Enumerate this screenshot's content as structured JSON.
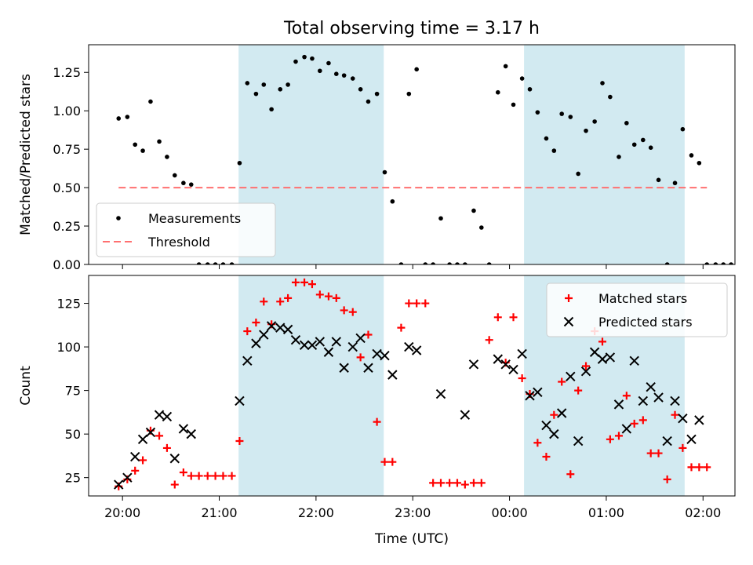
{
  "figure": {
    "title": "Total observing time = 3.17 h",
    "xlabel": "Time (UTC)",
    "x_ticks": [
      "20:00",
      "21:00",
      "22:00",
      "23:00",
      "00:00",
      "01:00",
      "02:00"
    ],
    "x_tick_hours": [
      20,
      21,
      22,
      23,
      24,
      25,
      26
    ],
    "xlim_hours": [
      19.65,
      26.33
    ],
    "shaded_intervals_hours": [
      [
        21.2,
        22.7
      ],
      [
        24.15,
        25.81
      ]
    ],
    "shade_color": "#add8e6"
  },
  "chart_data": [
    {
      "type": "scatter",
      "ylabel": "Matched/Predicted stars",
      "ylim": [
        0,
        1.43
      ],
      "y_ticks": [
        "0.00",
        "0.25",
        "0.50",
        "0.75",
        "1.00",
        "1.25"
      ],
      "y_tick_values": [
        0,
        0.25,
        0.5,
        0.75,
        1.0,
        1.25
      ],
      "legend_position": "lower-left",
      "series": [
        {
          "name": "Measurements",
          "marker": "dot",
          "color": "#000000",
          "x": [
            19.96,
            20.05,
            20.13,
            20.21,
            20.29,
            20.38,
            20.46,
            20.54,
            20.63,
            20.71,
            20.79,
            20.88,
            20.96,
            21.04,
            21.13,
            21.21,
            21.29,
            21.38,
            21.46,
            21.54,
            21.63,
            21.71,
            21.79,
            21.88,
            21.96,
            22.04,
            22.13,
            22.21,
            22.29,
            22.38,
            22.46,
            22.54,
            22.63,
            22.71,
            22.79,
            22.88,
            22.96,
            23.04,
            23.13,
            23.21,
            23.29,
            23.38,
            23.46,
            23.54,
            23.63,
            23.71,
            23.79,
            23.88,
            23.96,
            24.04,
            24.13,
            24.21,
            24.29,
            24.38,
            24.46,
            24.54,
            24.63,
            24.71,
            24.79,
            24.88,
            24.96,
            25.04,
            25.13,
            25.21,
            25.29,
            25.38,
            25.46,
            25.54,
            25.63,
            25.71,
            25.79,
            25.88,
            25.96,
            26.04,
            26.13,
            26.21,
            26.29
          ],
          "y": [
            0.95,
            0.96,
            0.78,
            0.74,
            1.06,
            0.8,
            0.7,
            0.58,
            0.53,
            0.52,
            0.0,
            0.0,
            0.0,
            0.0,
            0.0,
            0.66,
            1.18,
            1.11,
            1.17,
            1.01,
            1.14,
            1.17,
            1.32,
            1.35,
            1.34,
            1.26,
            1.31,
            1.24,
            1.23,
            1.21,
            1.14,
            1.06,
            1.11,
            0.6,
            0.41,
            0.0,
            1.11,
            1.27,
            0.0,
            0.0,
            0.3,
            0.0,
            0.0,
            0.0,
            0.35,
            0.24,
            0.0,
            1.12,
            1.29,
            1.04,
            1.21,
            1.14,
            0.99,
            0.82,
            0.74,
            0.98,
            0.96,
            0.59,
            0.87,
            0.93,
            1.18,
            1.09,
            0.7,
            0.92,
            0.78,
            0.81,
            0.76,
            0.55,
            0.0,
            0.53,
            0.88,
            0.71,
            0.66,
            0.0,
            0.0,
            0.0,
            0.0
          ]
        },
        {
          "name": "Threshold",
          "line_style": "dashed",
          "color": "#ff7070",
          "x": [
            19.96,
            26.04
          ],
          "y": [
            0.5,
            0.5
          ]
        }
      ]
    },
    {
      "type": "scatter",
      "ylabel": "Count",
      "ylim": [
        14.5,
        141
      ],
      "y_ticks": [
        "25",
        "50",
        "75",
        "100",
        "125"
      ],
      "y_tick_values": [
        25,
        50,
        75,
        100,
        125
      ],
      "legend_position": "upper-right",
      "series": [
        {
          "name": "Matched stars",
          "marker": "plus",
          "color": "#ff0000",
          "x": [
            19.96,
            20.05,
            20.13,
            20.21,
            20.29,
            20.38,
            20.46,
            20.54,
            20.63,
            20.71,
            20.79,
            20.88,
            20.96,
            21.04,
            21.13,
            21.21,
            21.29,
            21.38,
            21.46,
            21.54,
            21.63,
            21.71,
            21.79,
            21.88,
            21.96,
            22.04,
            22.13,
            22.21,
            22.29,
            22.38,
            22.46,
            22.54,
            22.63,
            22.71,
            22.79,
            22.88,
            22.96,
            23.04,
            23.13,
            23.21,
            23.29,
            23.38,
            23.46,
            23.54,
            23.63,
            23.71,
            23.79,
            23.88,
            23.96,
            24.04,
            24.13,
            24.21,
            24.29,
            24.38,
            24.46,
            24.54,
            24.63,
            24.71,
            24.79,
            24.88,
            24.96,
            25.04,
            25.13,
            25.21,
            25.29,
            25.38,
            25.46,
            25.54,
            25.63,
            25.71,
            25.79,
            25.88,
            25.96,
            26.04
          ],
          "y": [
            20,
            24,
            29,
            35,
            52,
            49,
            42,
            21,
            28,
            26,
            26,
            26,
            26,
            26,
            26,
            46,
            109,
            114,
            126,
            113,
            126,
            128,
            137,
            137,
            136,
            130,
            129,
            128,
            121,
            120,
            94,
            107,
            57,
            34,
            34,
            111,
            125,
            125,
            125,
            22,
            22,
            22,
            22,
            21,
            22,
            22,
            104,
            117,
            91,
            117,
            82,
            73,
            45,
            37,
            61,
            80,
            27,
            75,
            89,
            109,
            103,
            47,
            49,
            72,
            56,
            58,
            39,
            39,
            24,
            61,
            42,
            31,
            31,
            31
          ]
        },
        {
          "name": "Predicted stars",
          "marker": "x",
          "color": "#000000",
          "x": [
            19.96,
            20.05,
            20.13,
            20.21,
            20.29,
            20.38,
            20.46,
            20.54,
            20.63,
            20.71,
            21.21,
            21.29,
            21.38,
            21.46,
            21.54,
            21.63,
            21.71,
            21.79,
            21.88,
            21.96,
            22.04,
            22.13,
            22.21,
            22.29,
            22.38,
            22.46,
            22.54,
            22.63,
            22.71,
            22.79,
            22.96,
            23.04,
            23.29,
            23.54,
            23.63,
            23.88,
            23.96,
            24.04,
            24.13,
            24.21,
            24.29,
            24.38,
            24.46,
            24.54,
            24.63,
            24.71,
            24.79,
            24.88,
            24.96,
            25.04,
            25.13,
            25.21,
            25.29,
            25.38,
            25.46,
            25.54,
            25.63,
            25.71,
            25.79,
            25.88,
            25.96
          ],
          "y": [
            21,
            25,
            37,
            47,
            51,
            61,
            60,
            36,
            53,
            50,
            69,
            92,
            102,
            107,
            112,
            111,
            110,
            104,
            101,
            101,
            103,
            97,
            103,
            88,
            100,
            105,
            88,
            96,
            95,
            84,
            100,
            98,
            73,
            61,
            90,
            93,
            90,
            87,
            96,
            72,
            74,
            55,
            50,
            62,
            83,
            46,
            86,
            97,
            93,
            94,
            67,
            53,
            92,
            69,
            77,
            71,
            46,
            69,
            59,
            47,
            58
          ]
        }
      ]
    }
  ]
}
